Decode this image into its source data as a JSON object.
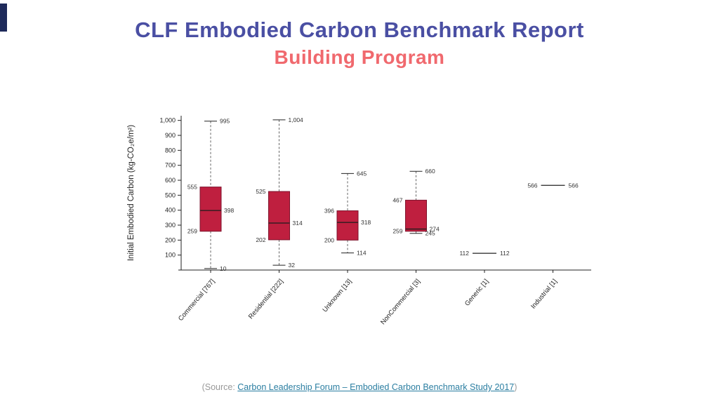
{
  "slide": {
    "title": "CLF Embodied Carbon Benchmark Report",
    "subtitle": "Building Program",
    "accent_color": "#1e2a5a",
    "title_color": "#4a4fa3",
    "subtitle_color": "#f0696e"
  },
  "source": {
    "prefix": "(Source: ",
    "link_text": "Carbon Leadership Forum – Embodied Carbon Benchmark Study 2017",
    "suffix": ")"
  },
  "chart_data": {
    "type": "boxplot",
    "title": "",
    "ylabel": "Initial Embodied Carbon (kg-CO₂e/m²)",
    "xlabel": "",
    "ylim": [
      0,
      1050
    ],
    "yticks": [
      100,
      200,
      300,
      400,
      500,
      600,
      700,
      800,
      900,
      1000
    ],
    "grid": false,
    "legend": "none",
    "box_color": "#bf1f3f",
    "box_edge_color": "#7e132c",
    "median_color": "#1c1c1c",
    "categories": [
      "Commercial [767]",
      "Residential [222]",
      "Unknown [13]",
      "NonCommercial [3]",
      "Generic [1]",
      "Industrial [1]"
    ],
    "boxes": [
      {
        "category": "Commercial [767]",
        "low": 10,
        "q1": 259,
        "median": 398,
        "q3": 555,
        "high": 995
      },
      {
        "category": "Residential [222]",
        "low": 32,
        "q1": 202,
        "median": 314,
        "q3": 525,
        "high": 1004
      },
      {
        "category": "Unknown [13]",
        "low": 114,
        "q1": 200,
        "median": 318,
        "q3": 396,
        "high": 645
      },
      {
        "category": "NonCommercial [3]",
        "low": 245,
        "q1": 259,
        "median": 274,
        "q3": 467,
        "high": 660
      },
      {
        "category": "Generic [1]",
        "value": 112
      },
      {
        "category": "Industrial [1]",
        "value": 566
      }
    ]
  }
}
